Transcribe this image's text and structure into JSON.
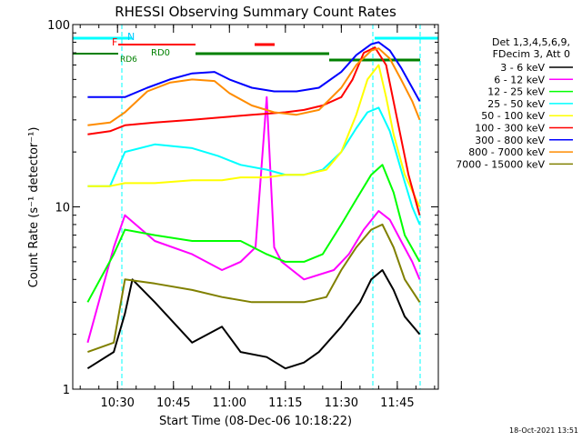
{
  "chart_data": {
    "type": "line",
    "title": "RHESSI Observing Summary Count Rates",
    "xlabel": "Start Time (08-Dec-06 10:18:22)",
    "ylabel": "Count Rate (s⁻¹ detector⁻¹)",
    "y_scale": "log",
    "ylim": [
      1,
      100
    ],
    "y_ticks": [
      1,
      10,
      100
    ],
    "y_tick_labels": [
      "1",
      "10",
      "100"
    ],
    "x_range_minutes": [
      "10:18",
      "11:56"
    ],
    "x_ticks": [
      {
        "label": "10:30",
        "minute": 630
      },
      {
        "label": "10:45",
        "minute": 645
      },
      {
        "label": "11:00",
        "minute": 660
      },
      {
        "label": "11:15",
        "minute": 675
      },
      {
        "label": "11:30",
        "minute": 690
      },
      {
        "label": "11:45",
        "minute": 705
      }
    ],
    "legend_header": [
      "Det 1,3,4,5,6,9,",
      "FDecim 3, Att 0"
    ],
    "legend_position": "right",
    "grid": false,
    "annotations": [
      {
        "text": "N",
        "color": "#00c8ff"
      },
      {
        "text": "F",
        "color": "#ff0000"
      },
      {
        "text": "RD6",
        "color": "#008000"
      },
      {
        "text": "RD0",
        "color": "#008000"
      }
    ],
    "footer_timestamp": "18-Oct-2021 13:51",
    "series": [
      {
        "name": "3 - 6 keV",
        "color": "#000000",
        "minutes": [
          622,
          629,
          632,
          634,
          640,
          650,
          658,
          663,
          670,
          675,
          680,
          684,
          690,
          695,
          698,
          701,
          704,
          707,
          711
        ],
        "values": [
          1.3,
          1.6,
          2.6,
          4.0,
          3.0,
          1.8,
          2.2,
          1.6,
          1.5,
          1.3,
          1.4,
          1.6,
          2.2,
          3.0,
          4.0,
          4.5,
          3.5,
          2.5,
          2.0
        ]
      },
      {
        "name": "6 - 12 keV",
        "color": "#ff00ff",
        "minutes": [
          622,
          629,
          632,
          640,
          650,
          658,
          663,
          667,
          670,
          672,
          674,
          680,
          688,
          692,
          696,
          700,
          703,
          706,
          709,
          711
        ],
        "values": [
          1.8,
          6.0,
          9.0,
          6.5,
          5.5,
          4.5,
          5.0,
          6.0,
          40.0,
          6.0,
          5.0,
          4.0,
          4.5,
          5.5,
          7.5,
          9.5,
          8.5,
          6.5,
          5.0,
          4.0
        ]
      },
      {
        "name": "12 - 25 keV",
        "color": "#00ff00",
        "minutes": [
          622,
          629,
          632,
          640,
          650,
          658,
          663,
          670,
          675,
          680,
          685,
          690,
          694,
          698,
          701,
          704,
          707,
          711
        ],
        "values": [
          3.0,
          5.5,
          7.5,
          7.0,
          6.5,
          6.5,
          6.5,
          5.5,
          5.0,
          5.0,
          5.5,
          8.0,
          11.0,
          15.0,
          17.0,
          12.0,
          7.0,
          5.0
        ]
      },
      {
        "name": "25 - 50 keV",
        "color": "#00ffff",
        "minutes": [
          622,
          628,
          632,
          640,
          650,
          657,
          663,
          670,
          675,
          680,
          685,
          690,
          694,
          697,
          700,
          703,
          706,
          709,
          711
        ],
        "values": [
          13.0,
          13.0,
          20.0,
          22.0,
          21.0,
          19.0,
          17.0,
          16.0,
          15.0,
          15.0,
          16.0,
          20.0,
          27.0,
          33.0,
          35.0,
          26.0,
          16.0,
          10.0,
          8.0
        ]
      },
      {
        "name": "50 - 100 keV",
        "color": "#ffff00",
        "minutes": [
          622,
          628,
          632,
          640,
          650,
          658,
          663,
          670,
          675,
          680,
          686,
          690,
          694,
          697,
          700,
          702,
          704,
          707,
          711
        ],
        "values": [
          13.0,
          13.0,
          13.5,
          13.5,
          14.0,
          14.0,
          14.5,
          14.5,
          15.0,
          15.0,
          16.0,
          20.0,
          32.0,
          50.0,
          60.0,
          40.0,
          25.0,
          15.0,
          10.0
        ]
      },
      {
        "name": "100 - 300 keV",
        "color": "#ff0000",
        "minutes": [
          622,
          628,
          632,
          640,
          650,
          658,
          666,
          675,
          680,
          685,
          690,
          693,
          696,
          699,
          702,
          705,
          708,
          711
        ],
        "values": [
          25.0,
          26.0,
          28.0,
          29.0,
          30.0,
          31.0,
          32.0,
          33.0,
          34.0,
          36.0,
          40.0,
          50.0,
          70.0,
          75.0,
          60.0,
          30.0,
          15.0,
          9.0
        ]
      },
      {
        "name": "300 - 800 keV",
        "color": "#0000ff",
        "minutes": [
          622,
          628,
          632,
          638,
          644,
          650,
          656,
          660,
          666,
          672,
          678,
          684,
          690,
          694,
          698,
          700,
          703,
          706,
          709,
          711
        ],
        "values": [
          40.0,
          40.0,
          40.0,
          45.0,
          50.0,
          54.0,
          55.0,
          50.0,
          45.0,
          43.0,
          43.0,
          45.0,
          55.0,
          68.0,
          78.0,
          80.0,
          72.0,
          58.0,
          45.0,
          38.0
        ]
      },
      {
        "name": "800 - 7000 keV",
        "color": "#ff8c00",
        "minutes": [
          622,
          628,
          632,
          638,
          644,
          650,
          656,
          660,
          666,
          672,
          678,
          684,
          690,
          694,
          698,
          700,
          703,
          706,
          709,
          711
        ],
        "values": [
          28.0,
          29.0,
          33.0,
          43.0,
          48.0,
          50.0,
          49.0,
          42.0,
          36.0,
          33.0,
          32.0,
          34.0,
          45.0,
          60.0,
          72.0,
          74.0,
          65.0,
          50.0,
          38.0,
          30.0
        ]
      },
      {
        "name": "7000 - 15000 keV",
        "color": "#808000",
        "minutes": [
          622,
          629,
          632,
          640,
          650,
          658,
          666,
          675,
          680,
          686,
          690,
          694,
          698,
          701,
          704,
          707,
          711
        ],
        "values": [
          1.6,
          1.8,
          4.0,
          3.8,
          3.5,
          3.2,
          3.0,
          3.0,
          3.0,
          3.2,
          4.5,
          6.0,
          7.5,
          8.0,
          6.0,
          4.0,
          3.0
        ]
      }
    ]
  }
}
